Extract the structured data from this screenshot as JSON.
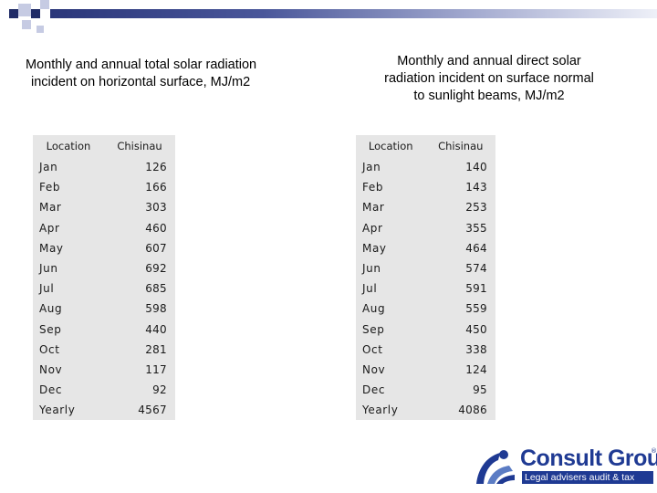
{
  "left": {
    "heading_line1": "Monthly and annual total solar radiation",
    "heading_line2": "incident on horizontal surface, MJ/m2",
    "col_location": "Location",
    "col_city": "Chisinau",
    "rows": [
      {
        "month": "Jan",
        "value": "126"
      },
      {
        "month": "Feb",
        "value": "166"
      },
      {
        "month": "Mar",
        "value": "303"
      },
      {
        "month": "Apr",
        "value": "460"
      },
      {
        "month": "May",
        "value": "607"
      },
      {
        "month": "Jun",
        "value": "692"
      },
      {
        "month": "Jul",
        "value": "685"
      },
      {
        "month": "Aug",
        "value": "598"
      },
      {
        "month": "Sep",
        "value": "440"
      },
      {
        "month": "Oct",
        "value": "281"
      },
      {
        "month": "Nov",
        "value": "117"
      },
      {
        "month": "Dec",
        "value": "92"
      },
      {
        "month": "Yearly",
        "value": "4567"
      }
    ]
  },
  "right": {
    "heading_line1": "Monthly and annual direct solar",
    "heading_line2": "radiation incident on surface normal",
    "heading_line3": "to sunlight beams, MJ/m2",
    "col_location": "Location",
    "col_city": "Chisinau",
    "rows": [
      {
        "month": "Jan",
        "value": "140"
      },
      {
        "month": "Feb",
        "value": "143"
      },
      {
        "month": "Mar",
        "value": "253"
      },
      {
        "month": "Apr",
        "value": "355"
      },
      {
        "month": "May",
        "value": "464"
      },
      {
        "month": "Jun",
        "value": "574"
      },
      {
        "month": "Jul",
        "value": "591"
      },
      {
        "month": "Aug",
        "value": "559"
      },
      {
        "month": "Sep",
        "value": "450"
      },
      {
        "month": "Oct",
        "value": "338"
      },
      {
        "month": "Nov",
        "value": "124"
      },
      {
        "month": "Dec",
        "value": "95"
      },
      {
        "month": "Yearly",
        "value": "4086"
      }
    ]
  },
  "logo": {
    "name": "Consult Group",
    "registered": "®",
    "tagline": "Legal advisers audit & tax",
    "icon": "consult-group-logo-icon"
  },
  "colors": {
    "accent_dark": "#1f2b66",
    "accent_light": "#c6cbe3",
    "brand_blue": "#1f3a93",
    "table_bg": "#e6e6e6"
  }
}
